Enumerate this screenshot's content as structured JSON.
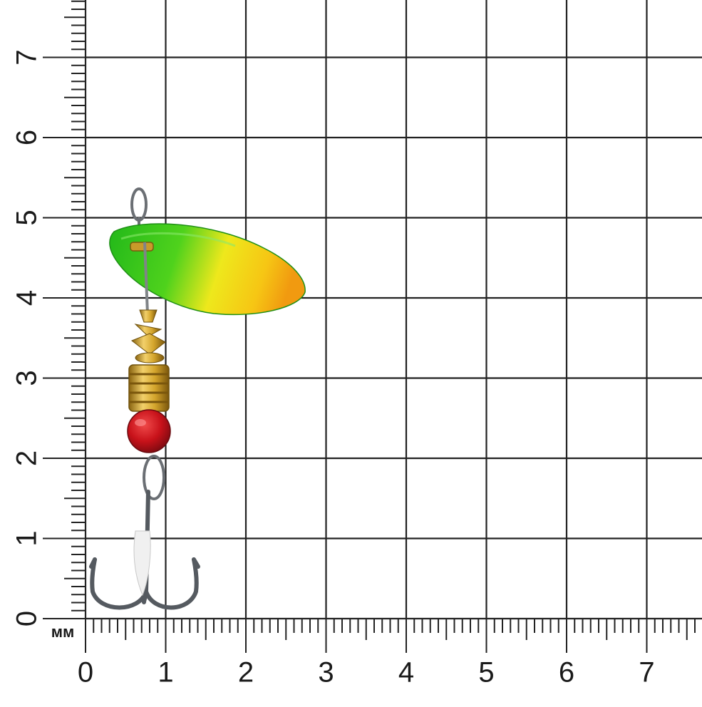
{
  "x_labels": [
    "0",
    "1",
    "2",
    "3",
    "4",
    "5",
    "6",
    "7"
  ],
  "y_labels": [
    "0",
    "1",
    "2",
    "3",
    "4",
    "5",
    "6",
    "7"
  ],
  "unit_label": "мм",
  "colors": {
    "grid": "#222222",
    "blade_green": "#2bc41c",
    "blade_yellow": "#f7e41a",
    "blade_orange": "#f4a20f",
    "brass": "#d4a52c",
    "bead_red": "#c8141c",
    "hook_steel": "#6b6f74"
  },
  "subject": {
    "blade": "spinner-blade",
    "body": "brass-body",
    "bead": "red-bead",
    "hook": "treble-hook"
  }
}
